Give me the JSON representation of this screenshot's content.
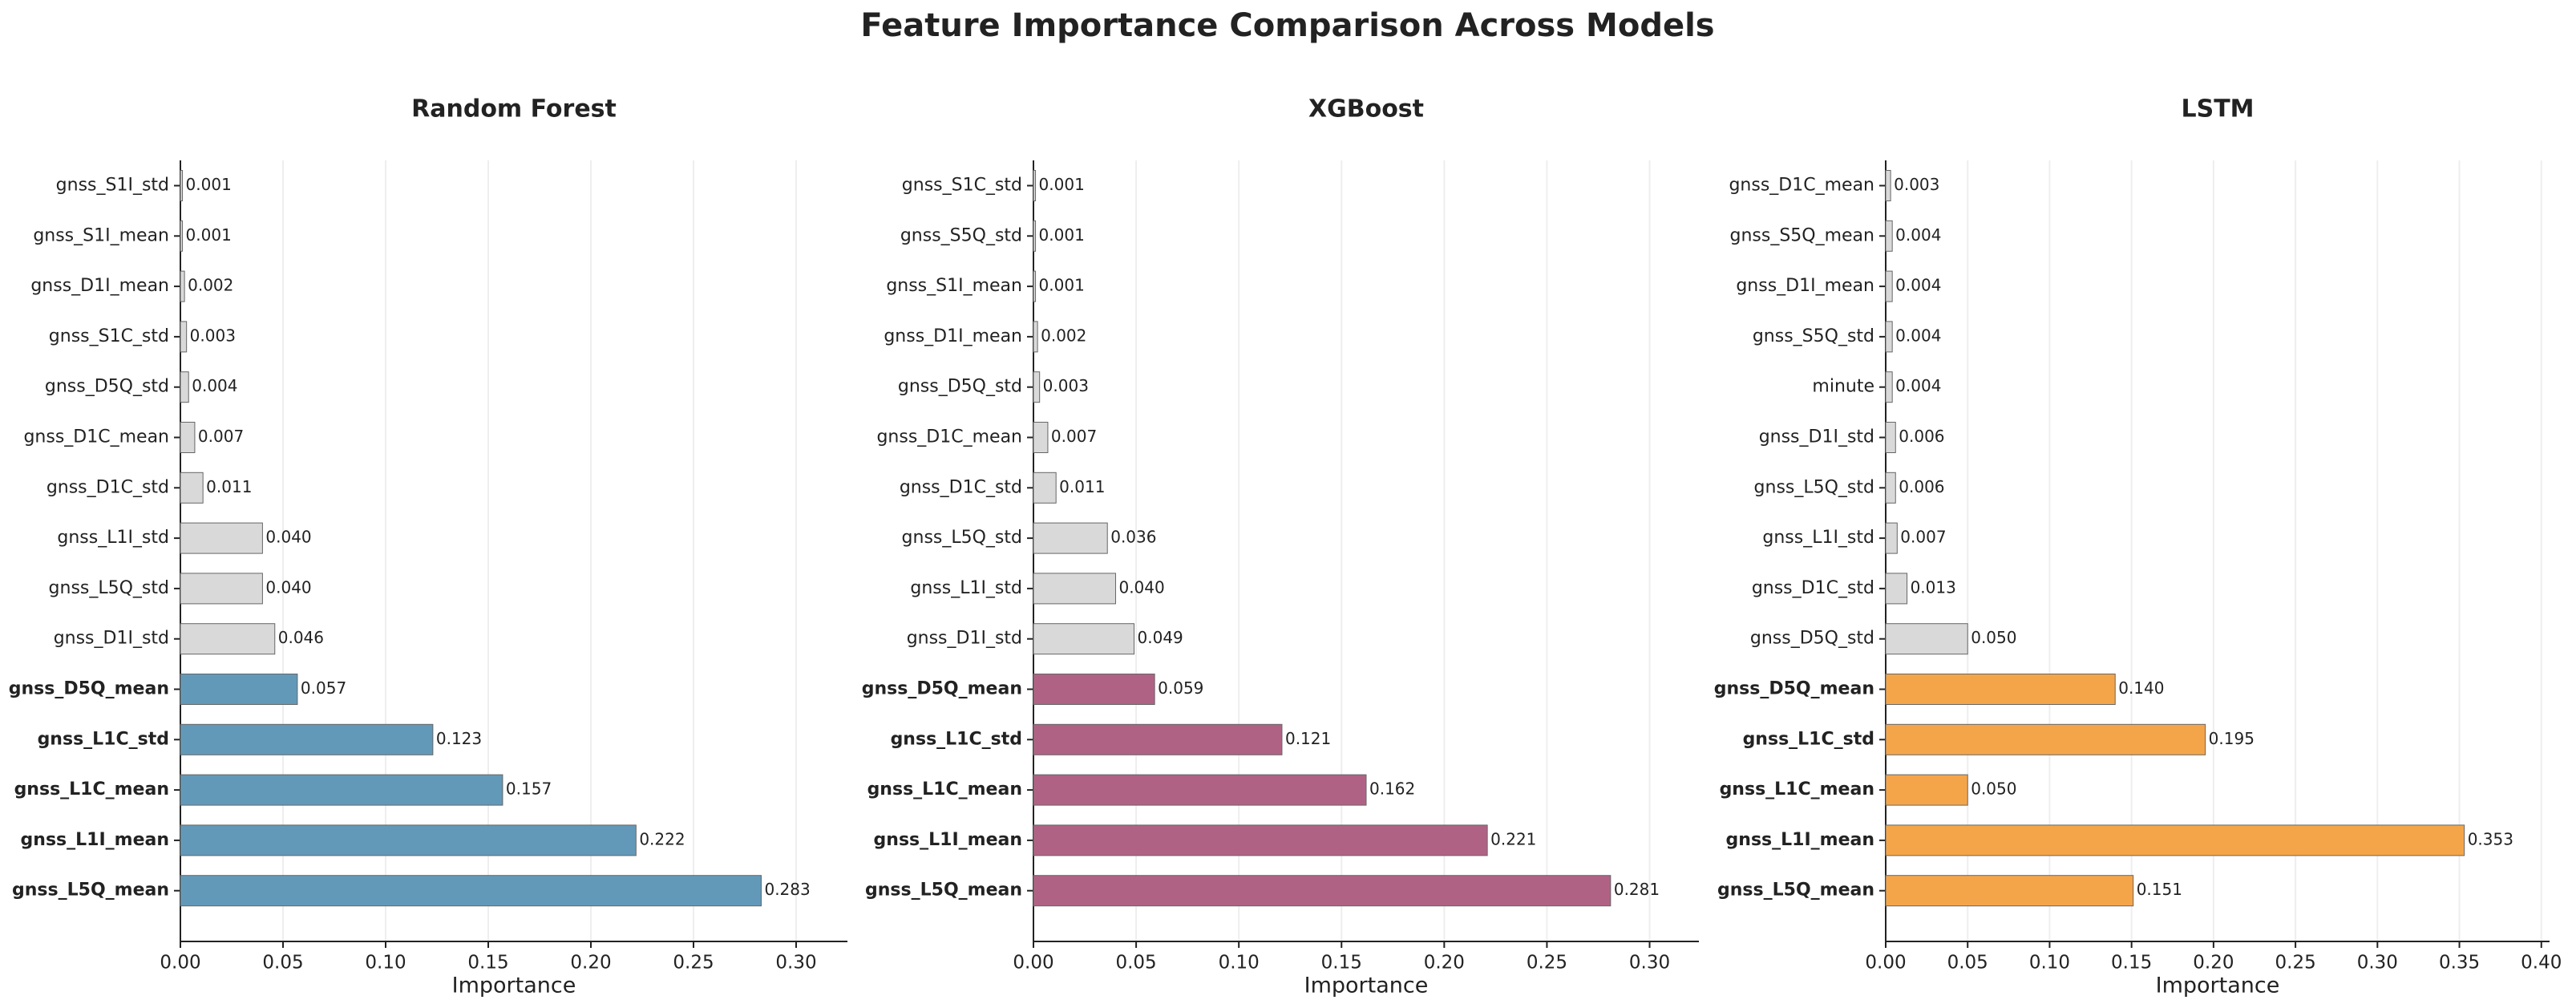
{
  "title": "Feature Importance Comparison Across Models",
  "chart_data": [
    {
      "type": "barh",
      "title": "Random Forest",
      "x_label": "Importance",
      "categories": [
        "gnss_S1I_std",
        "gnss_S1I_mean",
        "gnss_D1I_mean",
        "gnss_S1C_std",
        "gnss_D5Q_std",
        "gnss_D1C_mean",
        "gnss_D1C_std",
        "gnss_L1I_std",
        "gnss_L5Q_std",
        "gnss_D1I_std",
        "gnss_D5Q_mean",
        "gnss_L1C_std",
        "gnss_L1C_mean",
        "gnss_L1I_mean",
        "gnss_L5Q_mean"
      ],
      "values": [
        0.001,
        0.001,
        0.002,
        0.003,
        0.004,
        0.007,
        0.011,
        0.04,
        0.04,
        0.046,
        0.057,
        0.123,
        0.157,
        0.222,
        0.283
      ],
      "value_labels": [
        "0.001",
        "0.001",
        "0.002",
        "0.003",
        "0.004",
        "0.007",
        "0.011",
        "0.040",
        "0.040",
        "0.046",
        "0.057",
        "0.123",
        "0.157",
        "0.222",
        "0.283"
      ],
      "colors": [
        "#d9d9d9",
        "#d9d9d9",
        "#d9d9d9",
        "#d9d9d9",
        "#d9d9d9",
        "#d9d9d9",
        "#d9d9d9",
        "#d9d9d9",
        "#d9d9d9",
        "#d9d9d9",
        "#6399b8",
        "#6399b8",
        "#6399b8",
        "#6399b8",
        "#6399b8"
      ],
      "label_colors": [
        "#222222",
        "#222222",
        "#222222",
        "#222222",
        "#222222",
        "#222222",
        "#222222",
        "#222222",
        "#222222",
        "#222222",
        "#1a7fa8",
        "#1a7fa8",
        "#1a7fa8",
        "#1a7fa8",
        "#1a7fa8"
      ],
      "xlim": [
        0,
        0.325
      ],
      "xticks": [
        {
          "value": 0,
          "label": "0.00"
        },
        {
          "value": 0.05,
          "label": "0.05"
        },
        {
          "value": 0.1,
          "label": "0.10"
        },
        {
          "value": 0.15,
          "label": "0.15"
        },
        {
          "value": 0.2,
          "label": "0.20"
        },
        {
          "value": 0.25,
          "label": "0.25"
        },
        {
          "value": 0.3,
          "label": "0.30"
        }
      ],
      "grid": true
    },
    {
      "type": "barh",
      "title": "XGBoost",
      "x_label": "Importance",
      "categories": [
        "gnss_S1C_std",
        "gnss_S5Q_std",
        "gnss_S1I_mean",
        "gnss_D1I_mean",
        "gnss_D5Q_std",
        "gnss_D1C_mean",
        "gnss_D1C_std",
        "gnss_L5Q_std",
        "gnss_L1I_std",
        "gnss_D1I_std",
        "gnss_D5Q_mean",
        "gnss_L1C_std",
        "gnss_L1C_mean",
        "gnss_L1I_mean",
        "gnss_L5Q_mean"
      ],
      "values": [
        0.001,
        0.001,
        0.001,
        0.002,
        0.003,
        0.007,
        0.011,
        0.036,
        0.04,
        0.049,
        0.059,
        0.121,
        0.162,
        0.221,
        0.281
      ],
      "value_labels": [
        "0.001",
        "0.001",
        "0.001",
        "0.002",
        "0.003",
        "0.007",
        "0.011",
        "0.036",
        "0.040",
        "0.049",
        "0.059",
        "0.121",
        "0.162",
        "0.221",
        "0.281"
      ],
      "colors": [
        "#d9d9d9",
        "#d9d9d9",
        "#d9d9d9",
        "#d9d9d9",
        "#d9d9d9",
        "#d9d9d9",
        "#d9d9d9",
        "#d9d9d9",
        "#d9d9d9",
        "#d9d9d9",
        "#b06285",
        "#b06285",
        "#b06285",
        "#b06285",
        "#b06285"
      ],
      "label_colors": [
        "#222222",
        "#222222",
        "#222222",
        "#222222",
        "#222222",
        "#222222",
        "#222222",
        "#222222",
        "#222222",
        "#222222",
        "#a02a62",
        "#a02a62",
        "#a02a62",
        "#a02a62",
        "#a02a62"
      ],
      "xlim": [
        0,
        0.324
      ],
      "xticks": [
        {
          "value": 0,
          "label": "0.00"
        },
        {
          "value": 0.05,
          "label": "0.05"
        },
        {
          "value": 0.1,
          "label": "0.10"
        },
        {
          "value": 0.15,
          "label": "0.15"
        },
        {
          "value": 0.2,
          "label": "0.20"
        },
        {
          "value": 0.25,
          "label": "0.25"
        },
        {
          "value": 0.3,
          "label": "0.30"
        }
      ],
      "grid": true
    },
    {
      "type": "barh",
      "title": "LSTM",
      "x_label": "Importance",
      "categories": [
        "gnss_D1C_mean",
        "gnss_S5Q_mean",
        "gnss_D1I_mean",
        "gnss_S5Q_std",
        "minute",
        "gnss_D1I_std",
        "gnss_L5Q_std",
        "gnss_L1I_std",
        "gnss_D1C_std",
        "gnss_D5Q_std",
        "gnss_D5Q_mean",
        "gnss_L1C_std",
        "gnss_L1C_mean",
        "gnss_L1I_mean",
        "gnss_L5Q_mean"
      ],
      "values": [
        0.003,
        0.004,
        0.004,
        0.004,
        0.004,
        0.006,
        0.006,
        0.007,
        0.013,
        0.05,
        0.14,
        0.195,
        0.05,
        0.353,
        0.151
      ],
      "value_labels": [
        "0.003",
        "0.004",
        "0.004",
        "0.004",
        "0.004",
        "0.006",
        "0.006",
        "0.007",
        "0.013",
        "0.050",
        "0.140",
        "0.195",
        "0.050",
        "0.353",
        "0.151"
      ],
      "colors": [
        "#d9d9d9",
        "#d9d9d9",
        "#d9d9d9",
        "#d9d9d9",
        "#d9d9d9",
        "#d9d9d9",
        "#d9d9d9",
        "#d9d9d9",
        "#d9d9d9",
        "#d9d9d9",
        "#f4a54a",
        "#f4a54a",
        "#f4a54a",
        "#f4a54a",
        "#f4a54a"
      ],
      "label_colors": [
        "#222222",
        "#222222",
        "#222222",
        "#222222",
        "#222222",
        "#222222",
        "#222222",
        "#222222",
        "#222222",
        "#222222",
        "#f08a12",
        "#f08a12",
        "#f08a12",
        "#f08a12",
        "#f08a12"
      ],
      "xlim": [
        0,
        0.405
      ],
      "xticks": [
        {
          "value": 0,
          "label": "0.00"
        },
        {
          "value": 0.05,
          "label": "0.05"
        },
        {
          "value": 0.1,
          "label": "0.10"
        },
        {
          "value": 0.15,
          "label": "0.15"
        },
        {
          "value": 0.2,
          "label": "0.20"
        },
        {
          "value": 0.25,
          "label": "0.25"
        },
        {
          "value": 0.3,
          "label": "0.30"
        },
        {
          "value": 0.35,
          "label": "0.35"
        },
        {
          "value": 0.4,
          "label": "0.40"
        }
      ],
      "grid": true
    }
  ]
}
